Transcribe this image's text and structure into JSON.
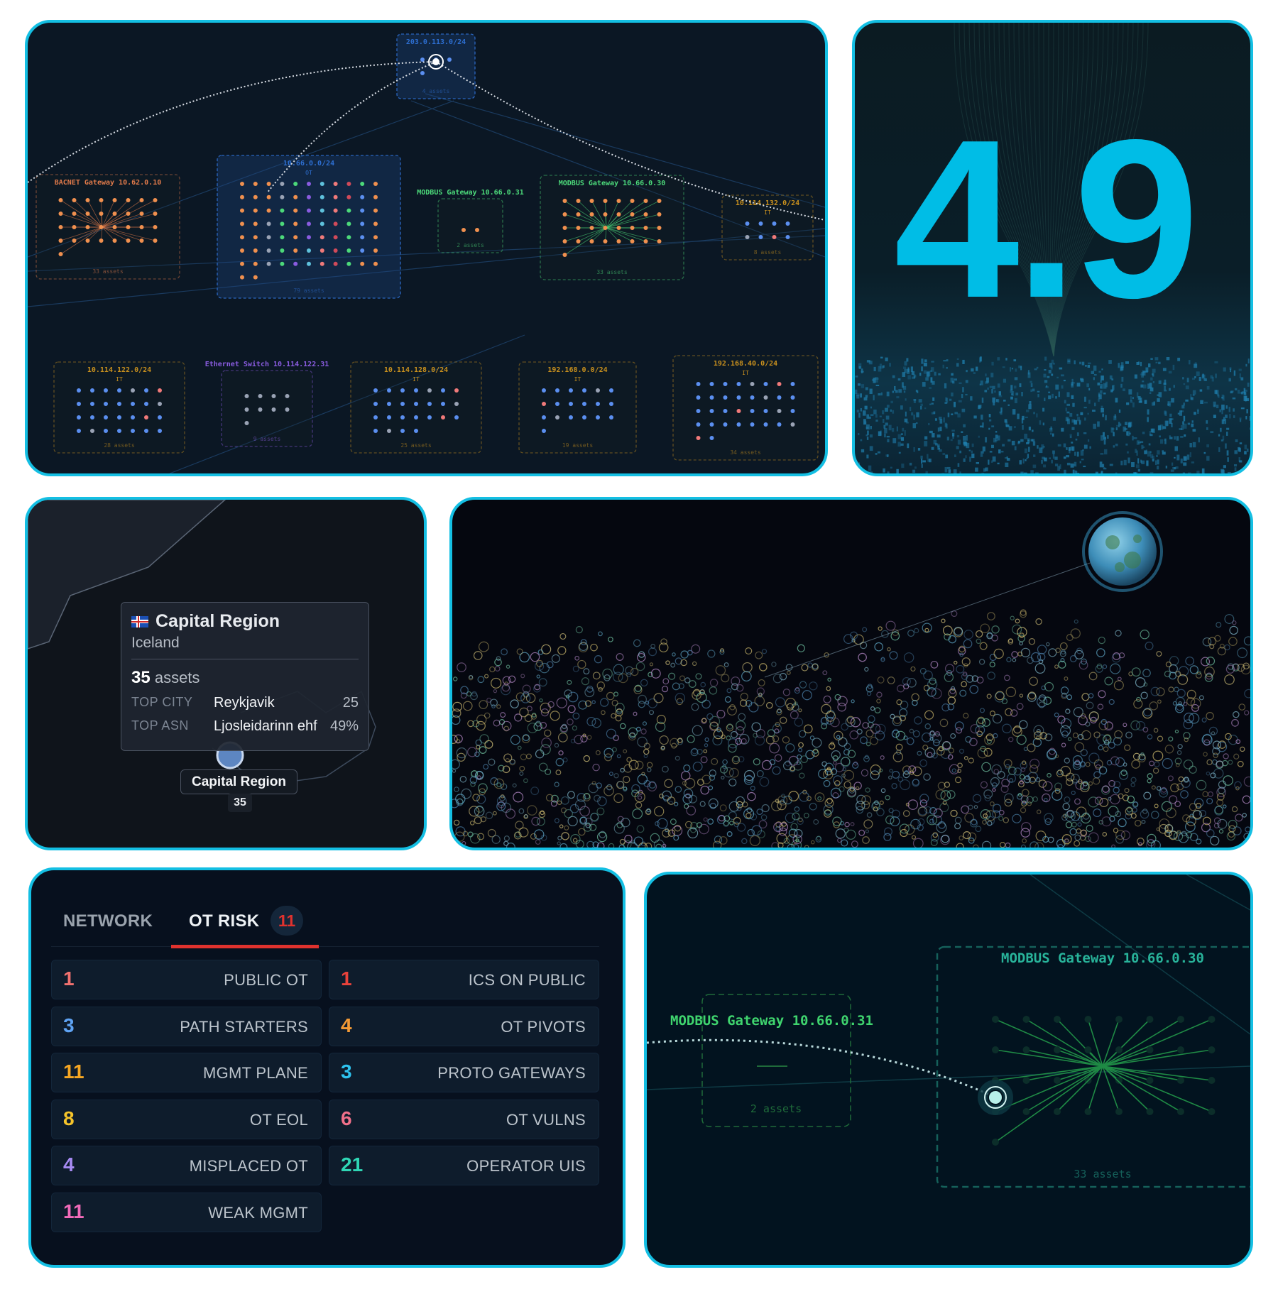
{
  "network_map": {
    "groups": [
      {
        "label": "203.0.113.0/24",
        "sub": "",
        "assets": "4 assets",
        "color": "#2d6ed0",
        "filled": true,
        "dots": 4,
        "cols": 3,
        "dotColor": "#5b8ff0",
        "hub": false
      },
      {
        "label": "BACNET Gateway 10.62.0.10",
        "sub": "",
        "assets": "33 assets",
        "color": "#e07a4a",
        "filled": false,
        "dots": 33,
        "cols": 8,
        "dotColor": "#f0904f",
        "hub": true
      },
      {
        "label": "10.66.0.0/24",
        "sub": "OT",
        "assets": "79 assets",
        "color": "#2d6ed0",
        "filled": true,
        "dots": 79,
        "cols": 11,
        "dotColor": "mixed",
        "hub": false
      },
      {
        "label": "MODBUS Gateway 10.66.0.31",
        "sub": "",
        "assets": "2 assets",
        "color": "#4cd97a",
        "filled": false,
        "dots": 2,
        "cols": 2,
        "dotColor": "#f0904f",
        "hub": false
      },
      {
        "label": "MODBUS Gateway 10.66.0.30",
        "sub": "",
        "assets": "33 assets",
        "color": "#4cd97a",
        "filled": false,
        "dots": 33,
        "cols": 8,
        "dotColor": "#f0904f",
        "hub": true
      },
      {
        "label": "10.114.132.0/24",
        "sub": "IT",
        "assets": "8 assets",
        "color": "#c8901e",
        "filled": false,
        "dots": 8,
        "cols": 4,
        "dotColor": "#5b8ff0",
        "hub": false
      },
      {
        "label": "10.114.122.0/24",
        "sub": "IT",
        "assets": "28 assets",
        "color": "#c8901e",
        "filled": false,
        "dots": 28,
        "cols": 7,
        "dotColor": "#5b8ff0",
        "hub": false
      },
      {
        "label": "Ethernet Switch 10.114.122.31",
        "sub": "",
        "assets": "9 assets",
        "color": "#8a5ce0",
        "filled": false,
        "dots": 9,
        "cols": 4,
        "dotColor": "#9aa3b5",
        "hub": false
      },
      {
        "label": "10.114.128.0/24",
        "sub": "IT",
        "assets": "25 assets",
        "color": "#c8901e",
        "filled": false,
        "dots": 25,
        "cols": 7,
        "dotColor": "#5b8ff0",
        "hub": false
      },
      {
        "label": "192.168.0.0/24",
        "sub": "IT",
        "assets": "19 assets",
        "color": "#c8901e",
        "filled": false,
        "dots": 19,
        "cols": 6,
        "dotColor": "#5b8ff0",
        "hub": false
      },
      {
        "label": "192.168.40.0/24",
        "sub": "IT",
        "assets": "34 assets",
        "color": "#c8901e",
        "filled": false,
        "dots": 34,
        "cols": 8,
        "dotColor": "#5b8ff0",
        "hub": false
      }
    ]
  },
  "score": {
    "value": "4.9",
    "color": "#00bde6"
  },
  "region_tooltip": {
    "title": "Capital Region",
    "country": "Iceland",
    "flag_icon": "iceland-flag-icon",
    "assets_count": "35",
    "assets_label": "assets",
    "top_city_label": "TOP CITY",
    "top_city": "Reykjavik",
    "top_city_count": "25",
    "top_asn_label": "TOP ASN",
    "top_asn": "Ljosleidarinn ehf",
    "top_asn_pct": "49%",
    "marker_label": "Capital Region",
    "marker_count": "35"
  },
  "risk_panel": {
    "tabs": [
      {
        "label": "NETWORK",
        "active": false
      },
      {
        "label": "OT RISK",
        "active": true,
        "badge": "11"
      }
    ],
    "accent": "#e0322e",
    "cards": [
      {
        "value": "1",
        "label": "PUBLIC OT",
        "color": "#f0716f"
      },
      {
        "value": "1",
        "label": "ICS ON PUBLIC",
        "color": "#e8423b"
      },
      {
        "value": "3",
        "label": "PATH STARTERS",
        "color": "#5fa4f5"
      },
      {
        "value": "4",
        "label": "OT PIVOTS",
        "color": "#f39a36"
      },
      {
        "value": "11",
        "label": "MGMT PLANE",
        "color": "#f5a623"
      },
      {
        "value": "3",
        "label": "PROTO GATEWAYS",
        "color": "#2ec3ef"
      },
      {
        "value": "8",
        "label": "OT EOL",
        "color": "#f6c42a"
      },
      {
        "value": "6",
        "label": "OT VULNS",
        "color": "#f0708a"
      },
      {
        "value": "4",
        "label": "MISPLACED OT",
        "color": "#a68af2"
      },
      {
        "value": "21",
        "label": "OPERATOR UIS",
        "color": "#2fd6b5"
      },
      {
        "value": "11",
        "label": "WEAK MGMT",
        "color": "#f06ab8"
      }
    ]
  },
  "gateway_zoom": {
    "left": {
      "label": "MODBUS Gateway 10.66.0.31",
      "assets": "2 assets"
    },
    "right": {
      "label": "MODBUS Gateway 10.66.0.30",
      "assets": "33 assets"
    }
  }
}
